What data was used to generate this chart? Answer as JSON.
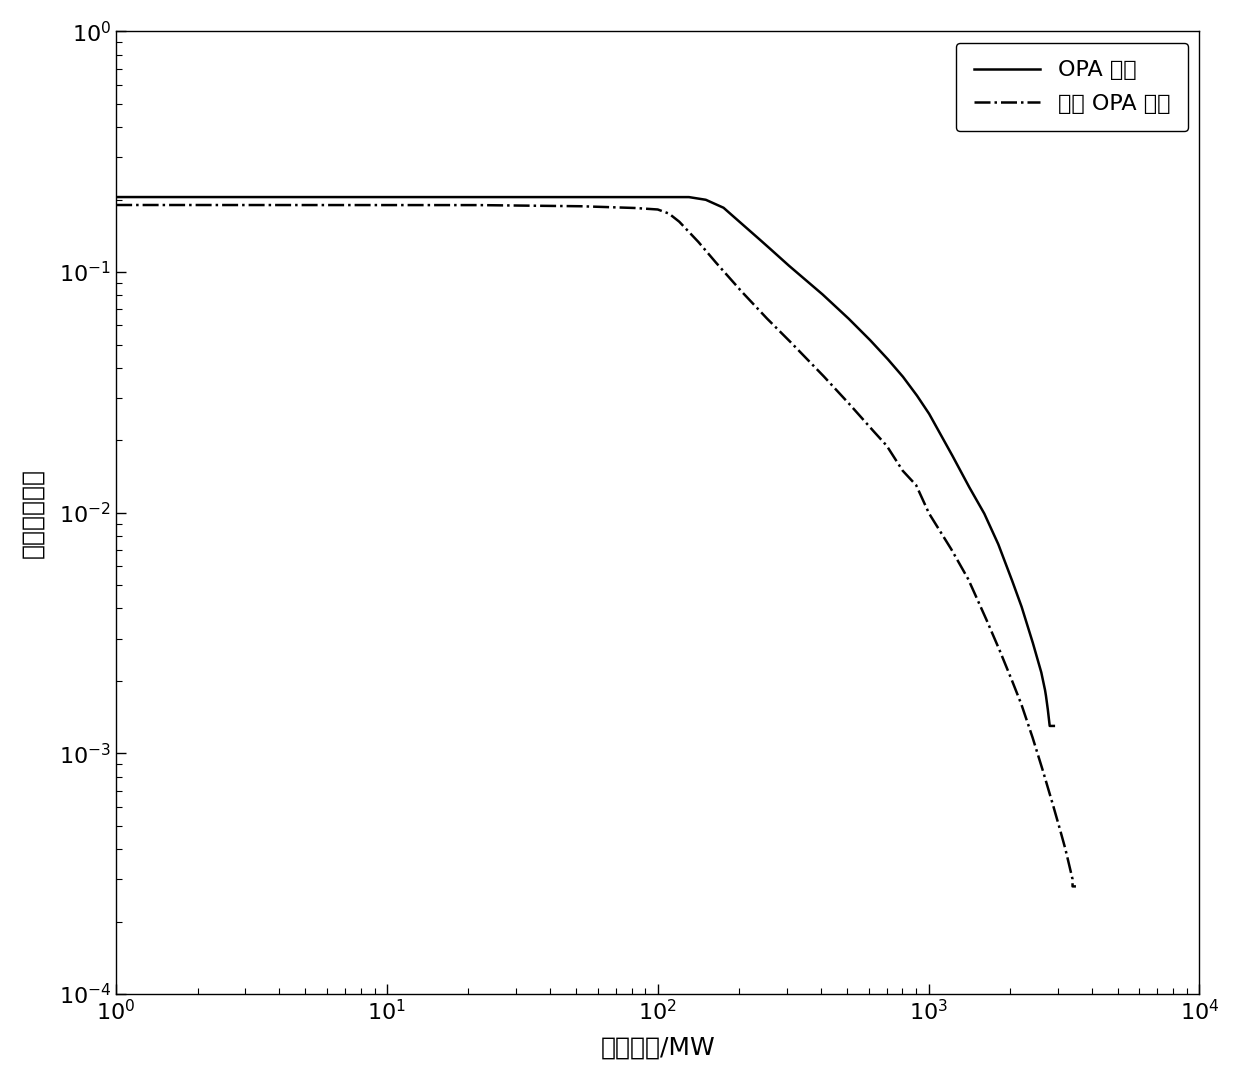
{
  "title": "",
  "xlabel": "负荷损失/MW",
  "ylabel": "停电概率分布",
  "legend_opa": "OPA 模型",
  "legend_improved": "改进 OPA 模型",
  "xlim": [
    1,
    10000
  ],
  "ylim": [
    0.0001,
    1.0
  ],
  "line_color": "#000000",
  "line_width": 1.8,
  "legend_fontsize": 16,
  "axis_fontsize": 18,
  "tick_fontsize": 16,
  "figsize": [
    12.4,
    10.8
  ],
  "dpi": 100
}
